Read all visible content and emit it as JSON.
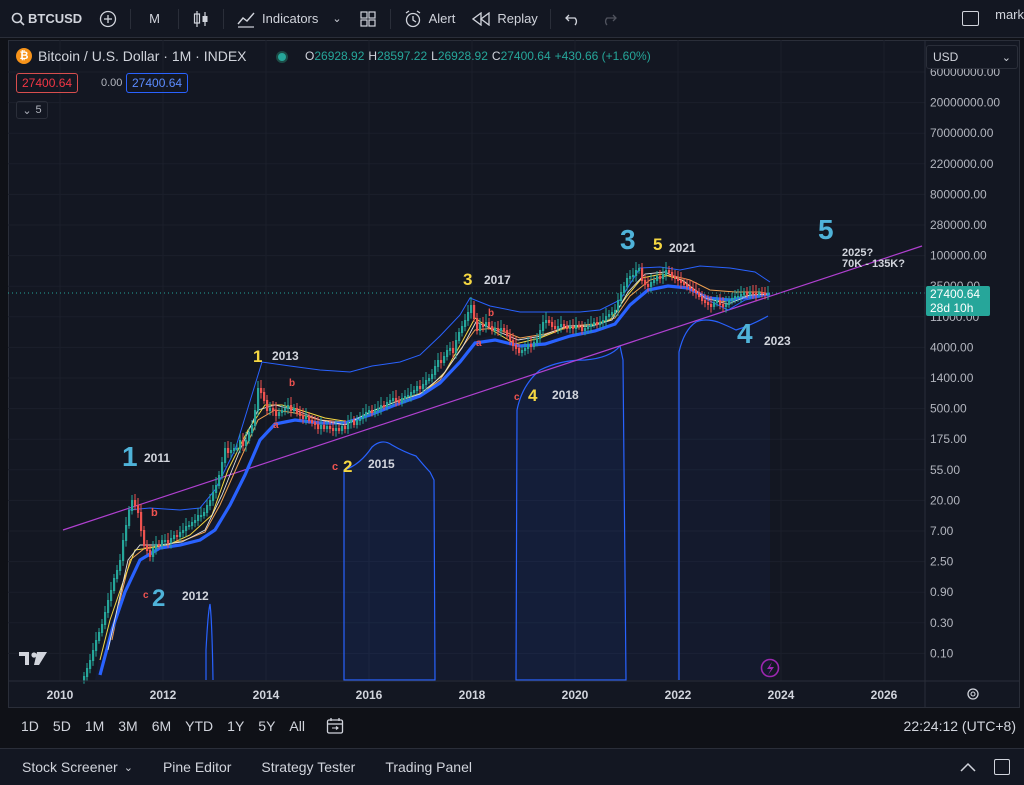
{
  "toolbar": {
    "symbol": "BTCUSD",
    "interval": "M",
    "indicators_label": "Indicators",
    "alert_label": "Alert",
    "replay_label": "Replay",
    "user": "mark"
  },
  "legend": {
    "title": "Bitcoin / U.S. Dollar · 1M · INDEX",
    "open_label": "O",
    "open": "26928.92",
    "high_label": "H",
    "high": "28597.22",
    "low_label": "L",
    "low": "26928.92",
    "close_label": "C",
    "close": "27400.64",
    "change": "+430.66 (+1.60%)",
    "bid": "27400.64",
    "spread": "0.00",
    "ask": "27400.64",
    "collapse_count": "5"
  },
  "currency": "USD",
  "price_axis": [
    "60000000.00",
    "20000000.00",
    "7000000.00",
    "2200000.00",
    "800000.00",
    "280000.00",
    "100000.00",
    "35000.00",
    "11000.00",
    "4000.00",
    "1400.00",
    "500.00",
    "175.00",
    "55.00",
    "20.00",
    "7.00",
    "2.50",
    "0.90",
    "0.30",
    "0.10"
  ],
  "last_price": {
    "value": "27400.64",
    "countdown": "28d 10h"
  },
  "time_axis": [
    "2010",
    "2012",
    "2014",
    "2016",
    "2018",
    "2020",
    "2022",
    "2024",
    "2026"
  ],
  "annotations": [
    {
      "text": "1",
      "color": "#4fb3d9"
    },
    {
      "text": "2011",
      "color": "#d1d4dc"
    },
    {
      "text": "2",
      "color": "#4fb3d9"
    },
    {
      "text": "2012",
      "color": "#d1d4dc"
    },
    {
      "text": "1",
      "color": "#f5d742"
    },
    {
      "text": "2013",
      "color": "#d1d4dc"
    },
    {
      "text": "2",
      "color": "#f5d742"
    },
    {
      "text": "2015",
      "color": "#d1d4dc"
    },
    {
      "text": "3",
      "color": "#f5d742"
    },
    {
      "text": "2017",
      "color": "#d1d4dc"
    },
    {
      "text": "4",
      "color": "#f5d742"
    },
    {
      "text": "2018",
      "color": "#d1d4dc"
    },
    {
      "text": "3",
      "color": "#4fb3d9"
    },
    {
      "text": "5",
      "color": "#f5d742"
    },
    {
      "text": "2021",
      "color": "#d1d4dc"
    },
    {
      "text": "4",
      "color": "#4fb3d9"
    },
    {
      "text": "2023",
      "color": "#d1d4dc"
    },
    {
      "text": "5",
      "color": "#4fb3d9"
    },
    {
      "text": "2025?",
      "color": "#d1d4dc"
    },
    {
      "text": "70K - 135K?",
      "color": "#d1d4dc"
    },
    {
      "text": "b",
      "color": "#ef5350"
    },
    {
      "text": "c",
      "color": "#ef5350"
    }
  ],
  "ranges": [
    "1D",
    "5D",
    "1M",
    "3M",
    "6M",
    "YTD",
    "1Y",
    "5Y",
    "All"
  ],
  "clock": "22:24:12 (UTC+8)",
  "panels": [
    "Stock Screener",
    "Pine Editor",
    "Strategy Tester",
    "Trading Panel"
  ],
  "colors": {
    "bg": "#131722",
    "up": "#26a69a",
    "down": "#ef5350",
    "ma_blue": "#2962ff",
    "trend": "#b040d0",
    "accent": "#2962ff"
  }
}
